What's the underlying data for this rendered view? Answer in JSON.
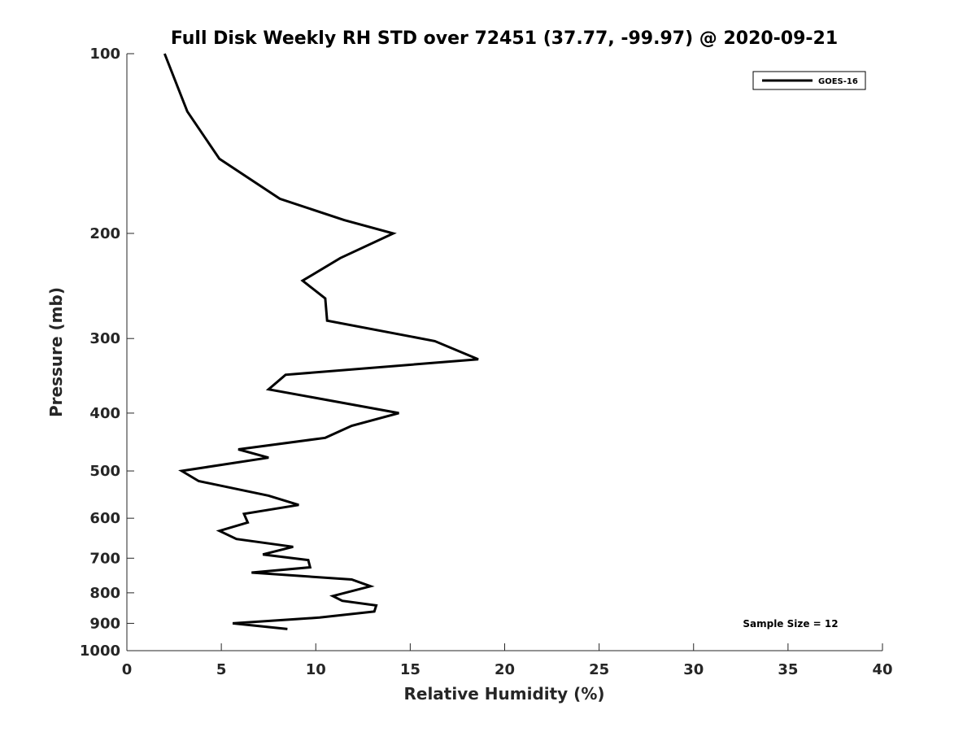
{
  "chart_data": {
    "type": "line",
    "title": "Full Disk Weekly RH STD over 72451 (37.77, -99.97) @ 2020-09-21",
    "xlabel": "Relative Humidity (%)",
    "ylabel": "Pressure (mb)",
    "xlim": [
      0,
      40
    ],
    "ylim": [
      100,
      1000
    ],
    "y_scale": "log",
    "y_reversed": true,
    "x_ticks": [
      0,
      5,
      10,
      15,
      20,
      25,
      30,
      35,
      40
    ],
    "y_ticks": [
      100,
      200,
      300,
      400,
      500,
      600,
      700,
      800,
      900,
      1000
    ],
    "grid": false,
    "legend_position": "top-right",
    "annotation": "Sample Size = 12",
    "series": [
      {
        "name": "GOES-16",
        "color": "#000000",
        "points": [
          [
            2.0,
            100
          ],
          [
            3.2,
            125
          ],
          [
            4.9,
            150
          ],
          [
            8.1,
            175
          ],
          [
            11.5,
            190
          ],
          [
            14.1,
            200
          ],
          [
            11.3,
            220
          ],
          [
            9.3,
            240
          ],
          [
            10.5,
            257
          ],
          [
            10.6,
            280
          ],
          [
            16.3,
            303
          ],
          [
            18.6,
            325
          ],
          [
            8.4,
            345
          ],
          [
            7.5,
            365
          ],
          [
            14.4,
            400
          ],
          [
            11.9,
            420
          ],
          [
            10.5,
            440
          ],
          [
            5.9,
            460
          ],
          [
            7.5,
            475
          ],
          [
            2.9,
            500
          ],
          [
            3.8,
            520
          ],
          [
            7.5,
            550
          ],
          [
            9.1,
            570
          ],
          [
            6.2,
            590
          ],
          [
            6.4,
            610
          ],
          [
            4.9,
            630
          ],
          [
            5.8,
            650
          ],
          [
            8.8,
            670
          ],
          [
            7.2,
            690
          ],
          [
            9.6,
            705
          ],
          [
            9.7,
            725
          ],
          [
            6.6,
            740
          ],
          [
            11.9,
            760
          ],
          [
            12.9,
            780
          ],
          [
            10.9,
            810
          ],
          [
            11.4,
            825
          ],
          [
            13.2,
            840
          ],
          [
            13.1,
            860
          ],
          [
            10.2,
            880
          ],
          [
            5.6,
            900
          ],
          [
            8.5,
            920
          ]
        ]
      }
    ]
  }
}
